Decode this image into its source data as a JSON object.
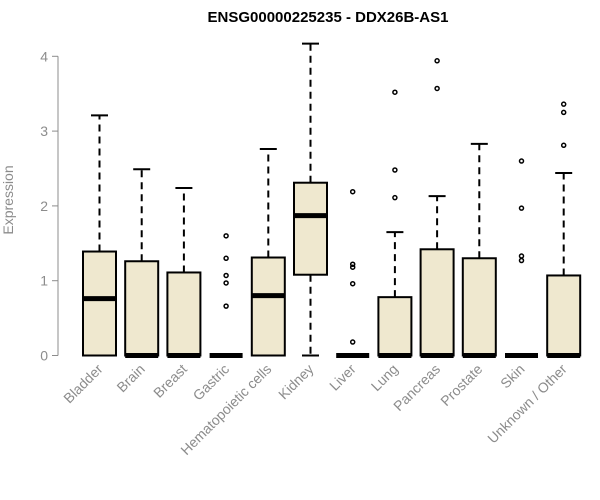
{
  "chart_data": {
    "type": "boxplot",
    "title": "ENSG00000225235 - DDX26B-AS1",
    "ylabel": "Expression",
    "ylim": [
      0,
      4.2
    ],
    "yticks": [
      0,
      1,
      2,
      3,
      4
    ],
    "grid": false,
    "box_fill": "#efe8cf",
    "categories": [
      "Bladder",
      "Brain",
      "Breast",
      "Gastric",
      "Hematopoietic cells",
      "Kidney",
      "Liver",
      "Lung",
      "Pancreas",
      "Prostate",
      "Skin",
      "Unknown / Other"
    ],
    "boxes": [
      {
        "q1": 0,
        "median": 0.76,
        "q3": 1.39,
        "whisker_low": 0,
        "whisker_high": 3.21,
        "outliers": []
      },
      {
        "q1": 0,
        "median": 0,
        "q3": 1.26,
        "whisker_low": 0,
        "whisker_high": 2.49,
        "outliers": []
      },
      {
        "q1": 0,
        "median": 0,
        "q3": 1.11,
        "whisker_low": 0,
        "whisker_high": 2.24,
        "outliers": []
      },
      {
        "q1": 0,
        "median": 0,
        "q3": 0,
        "whisker_low": 0,
        "whisker_high": 0,
        "outliers": [
          1.6,
          1.3,
          1.07,
          0.97,
          0.66
        ]
      },
      {
        "q1": 0,
        "median": 0.8,
        "q3": 1.31,
        "whisker_low": 0,
        "whisker_high": 2.76,
        "outliers": []
      },
      {
        "q1": 1.08,
        "median": 1.87,
        "q3": 2.31,
        "whisker_low": 0,
        "whisker_high": 4.17,
        "outliers": []
      },
      {
        "q1": 0,
        "median": 0,
        "q3": 0,
        "whisker_low": 0,
        "whisker_high": 0,
        "outliers": [
          2.19,
          1.22,
          1.18,
          0.96,
          0.18
        ]
      },
      {
        "q1": 0,
        "median": 0,
        "q3": 0.78,
        "whisker_low": 0,
        "whisker_high": 1.65,
        "outliers": [
          3.52,
          2.48,
          2.11
        ]
      },
      {
        "q1": 0,
        "median": 0,
        "q3": 1.42,
        "whisker_low": 0,
        "whisker_high": 2.13,
        "outliers": [
          3.94,
          3.57
        ]
      },
      {
        "q1": 0,
        "median": 0,
        "q3": 1.3,
        "whisker_low": 0,
        "whisker_high": 2.83,
        "outliers": []
      },
      {
        "q1": 0,
        "median": 0,
        "q3": 0,
        "whisker_low": 0,
        "whisker_high": 0,
        "outliers": [
          2.6,
          1.97,
          1.33,
          1.27
        ]
      },
      {
        "q1": 0,
        "median": 0,
        "q3": 1.07,
        "whisker_low": 0,
        "whisker_high": 2.44,
        "outliers": [
          3.36,
          3.25,
          2.81
        ]
      }
    ]
  }
}
